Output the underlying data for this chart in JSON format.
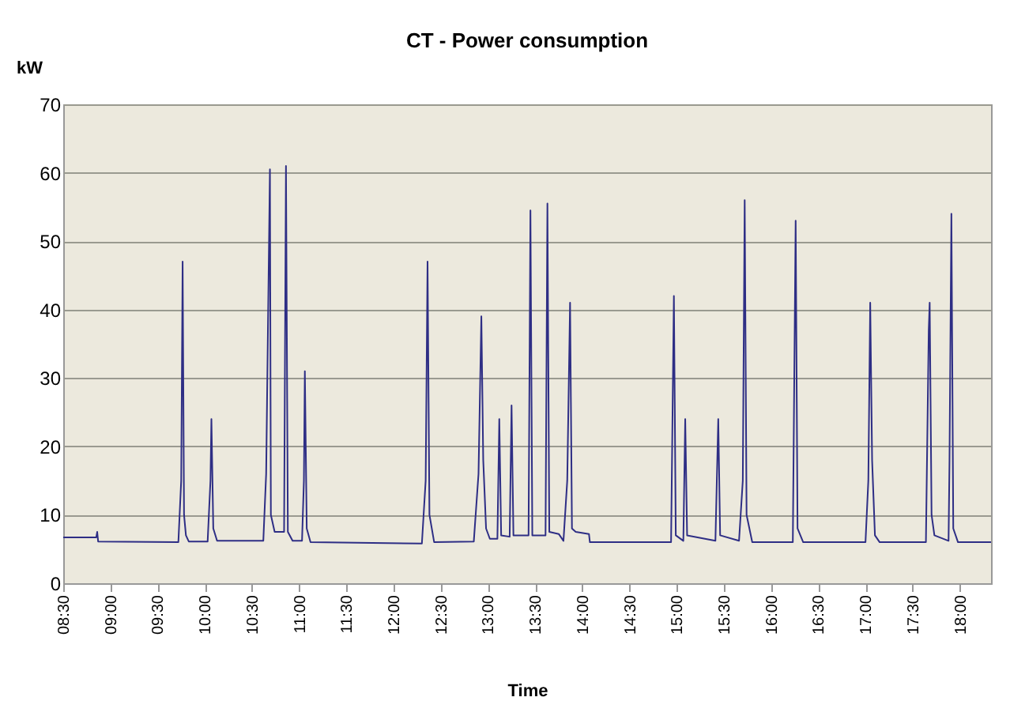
{
  "chart_data": {
    "type": "line",
    "title": "CT - Power consumption",
    "xlabel": "Time",
    "ylabel": "kW",
    "x": [
      8.5,
      8.85,
      8.86,
      8.87,
      9.72,
      9.75,
      9.765,
      9.78,
      9.8,
      9.83,
      10.03,
      10.06,
      10.07,
      10.09,
      10.13,
      10.62,
      10.65,
      10.69,
      10.7,
      10.74,
      10.84,
      10.86,
      10.88,
      10.93,
      11.03,
      11.05,
      11.06,
      11.08,
      11.12,
      12.3,
      12.34,
      12.36,
      12.38,
      12.43,
      12.85,
      12.9,
      12.93,
      12.95,
      12.98,
      13.02,
      13.1,
      13.12,
      13.14,
      13.23,
      13.25,
      13.27,
      13.43,
      13.45,
      13.47,
      13.61,
      13.63,
      13.65,
      13.75,
      13.8,
      13.84,
      13.87,
      13.89,
      13.93,
      14.07,
      14.08,
      14.94,
      14.97,
      14.99,
      15.07,
      15.09,
      15.11,
      15.41,
      15.44,
      15.46,
      15.66,
      15.7,
      15.72,
      15.74,
      15.8,
      16.23,
      16.26,
      16.28,
      16.34,
      17.0,
      17.03,
      17.05,
      17.07,
      17.1,
      17.15,
      17.64,
      17.67,
      17.68,
      17.7,
      17.73,
      17.88,
      17.89,
      17.91,
      17.93,
      17.98,
      18.33
    ],
    "series": [
      {
        "color": "#2e2e85",
        "values": [
          6.7,
          6.7,
          7.5,
          6.1,
          6.0,
          15,
          47,
          10,
          7,
          6.1,
          6.1,
          15,
          24,
          8,
          6.2,
          6.2,
          16,
          60.5,
          10,
          7.5,
          7.5,
          61,
          7.5,
          6.2,
          6.2,
          15,
          31,
          8,
          6.0,
          5.8,
          15,
          47,
          10,
          6.0,
          6.1,
          16,
          39,
          18,
          8,
          6.5,
          6.5,
          24,
          7,
          6.8,
          26,
          7,
          7,
          54.5,
          7,
          7,
          55.5,
          7.5,
          7.2,
          6.2,
          15,
          41,
          8,
          7.5,
          7.2,
          6.0,
          6.0,
          42,
          7,
          6.2,
          24,
          7,
          6.2,
          24,
          7,
          6.2,
          15,
          56,
          10,
          6.0,
          6.0,
          53,
          8,
          6.0,
          6.0,
          15,
          41,
          18,
          7,
          6.0,
          6.0,
          37,
          41,
          10,
          7,
          6.2,
          18,
          54,
          8,
          6.0,
          6.0
        ]
      }
    ],
    "xlim": [
      8.5,
      18.33
    ],
    "xticks": [
      {
        "value": 8.5,
        "label": "08:30"
      },
      {
        "value": 9,
        "label": "09:00"
      },
      {
        "value": 9.5,
        "label": "09:30"
      },
      {
        "value": 10,
        "label": "10:00"
      },
      {
        "value": 10.5,
        "label": "10:30"
      },
      {
        "value": 11,
        "label": "11:00"
      },
      {
        "value": 11.5,
        "label": "11:30"
      },
      {
        "value": 12,
        "label": "12:00"
      },
      {
        "value": 12.5,
        "label": "12:30"
      },
      {
        "value": 13,
        "label": "13:00"
      },
      {
        "value": 13.5,
        "label": "13:30"
      },
      {
        "value": 14,
        "label": "14:00"
      },
      {
        "value": 14.5,
        "label": "14:30"
      },
      {
        "value": 15,
        "label": "15:00"
      },
      {
        "value": 15.5,
        "label": "15:30"
      },
      {
        "value": 16,
        "label": "16:00"
      },
      {
        "value": 16.5,
        "label": "16:30"
      },
      {
        "value": 17,
        "label": "17:00"
      },
      {
        "value": 17.5,
        "label": "17:30"
      },
      {
        "value": 18,
        "label": "18:00"
      }
    ],
    "ylim": [
      0,
      70
    ],
    "yticks": [
      0,
      10,
      20,
      30,
      40,
      50,
      60,
      70
    ],
    "grid": "y"
  }
}
